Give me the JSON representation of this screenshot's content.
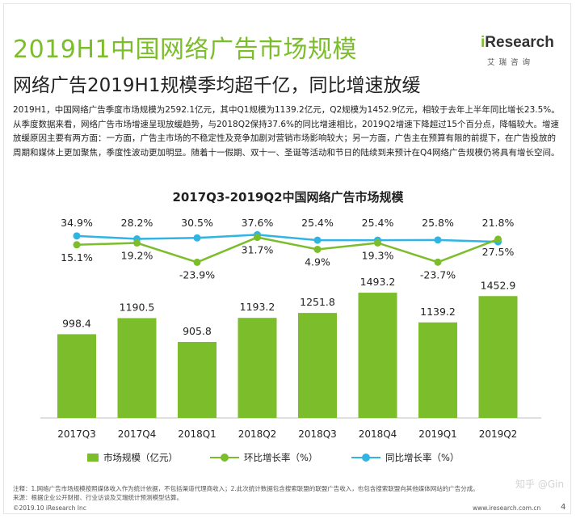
{
  "header": {
    "title": "2019H1中国网络广告市场规模",
    "subtitle": "网络广告2019H1规模季均超千亿，同比增速放缓"
  },
  "brand": {
    "name_i": "i",
    "name_rest": "Research",
    "sub": "艾瑞咨询",
    "accent": "#7cbd2c"
  },
  "intro_text": "2019H1，中国网络广告季度市场规模为2592.1亿元，其中Q1规模为1139.2亿元，Q2规模为1452.9亿元，相较于去年上半年同比增长23.5%。从季度数据来看，网络广告市场增速呈现放缓趋势，与2018Q2保持37.6%的同比增速相比，2019Q2增速下降超过15个百分点，降幅较大。增速放缓原因主要有两方面：一方面，广告主市场的不稳定性及竞争加剧对营销市场影响较大；另一方面，广告主在预算有限的前提下，在广告投放的周期和媒体上更加聚焦，季度性波动更加明显。随着十一假期、双十一、圣诞等活动和节日的陆续到来预计在Q4网络广告规模仍将具有增长空间。",
  "chart_data": {
    "type": "bar",
    "title": "2017Q3-2019Q2中国网络广告市场规模",
    "categories": [
      "2017Q3",
      "2017Q4",
      "2018Q1",
      "2018Q2",
      "2018Q3",
      "2018Q4",
      "2019Q1",
      "2019Q2"
    ],
    "series": [
      {
        "name": "市场规模（亿元）",
        "type": "bar",
        "color": "#7cbd2c",
        "values": [
          998.4,
          1190.5,
          905.8,
          1193.2,
          1251.8,
          1493.2,
          1139.2,
          1452.9
        ]
      },
      {
        "name": "环比增长率（%）",
        "type": "line",
        "color": "#7cbd2c",
        "values": [
          15.1,
          19.2,
          -23.9,
          31.7,
          4.9,
          19.3,
          -23.7,
          27.5
        ]
      },
      {
        "name": "同比增长率（%）",
        "type": "line",
        "color": "#2fb4e3",
        "values": [
          34.9,
          28.2,
          30.5,
          37.6,
          25.4,
          25.4,
          25.8,
          21.8
        ]
      }
    ],
    "bar_labels": [
      "998.4",
      "1190.5",
      "905.8",
      "1193.2",
      "1251.8",
      "1493.2",
      "1139.2",
      "1452.9"
    ],
    "qoq_labels": [
      "15.1%",
      "19.2%",
      "-23.9%",
      "31.7%",
      "4.9%",
      "19.3%",
      "-23.7%",
      "27.5%"
    ],
    "yoy_labels": [
      "34.9%",
      "28.2%",
      "30.5%",
      "37.6%",
      "25.4%",
      "25.4%",
      "25.8%",
      "21.8%"
    ],
    "legend": [
      "市场规模（亿元）",
      "环比增长率（%）",
      "同比增长率（%）"
    ],
    "legend_position": "bottom",
    "grid": false
  },
  "footer": {
    "note": "注释：1.网络广告市场规模按照媒体收入作为统计依据，不包括渠道代理商收入；2.此次统计数据包含搜索联盟的联盟广告收入，也包含搜索联盟向其他媒体网站的广告分成。",
    "source": "来源：根据企业公开财报、行业访谈及艾瑞统计预测模型估算。",
    "copyright": "©2019.10 iResearch Inc",
    "site": "www.iresearch.com.cn",
    "page": "4",
    "watermark": "知乎 @Gin"
  }
}
